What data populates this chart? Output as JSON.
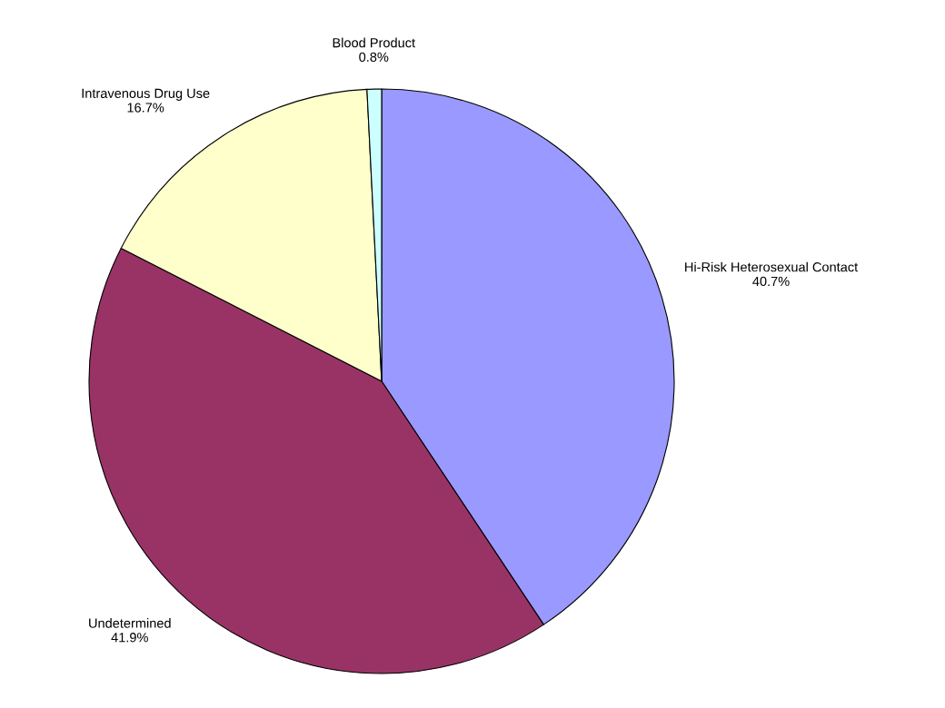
{
  "chart_data": {
    "type": "pie",
    "categories": [
      "Hi-Risk Heterosexual Contact",
      "Undetermined",
      "Intravenous Drug Use",
      "Blood Product"
    ],
    "values": [
      40.7,
      41.9,
      16.7,
      0.8
    ],
    "value_labels": [
      "40.7%",
      "41.9%",
      "16.7%",
      "0.8%"
    ],
    "colors": [
      "#9999ff",
      "#993366",
      "#ffffcc",
      "#ccffff"
    ],
    "legend": false
  }
}
